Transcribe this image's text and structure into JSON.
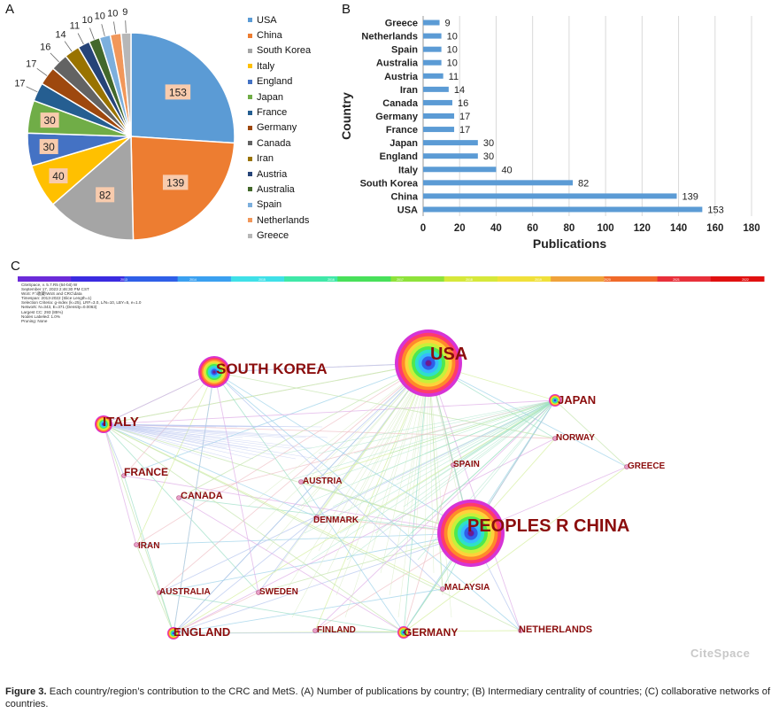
{
  "panels": {
    "a": "A",
    "b": "B",
    "c": "C"
  },
  "chart_data": [
    {
      "type": "pie",
      "labels": [
        "USA",
        "China",
        "South Korea",
        "Italy",
        "England",
        "Japan",
        "France",
        "Germany",
        "Canada",
        "Iran",
        "Austria",
        "Australia",
        "Spain",
        "Netherlands",
        "Greece"
      ],
      "values": [
        153,
        139,
        82,
        40,
        30,
        30,
        17,
        17,
        16,
        14,
        11,
        10,
        10,
        10,
        9
      ],
      "colors": [
        "#5b9bd5",
        "#ed7d31",
        "#a5a5a5",
        "#ffc000",
        "#4472c4",
        "#70ad47",
        "#255e91",
        "#9e480e",
        "#636363",
        "#997300",
        "#264478",
        "#43682b",
        "#7cafdd",
        "#f1975a",
        "#b7b7b7"
      ],
      "legend": "right"
    },
    {
      "type": "bar",
      "orientation": "horizontal",
      "categories": [
        "Greece",
        "Netherlands",
        "Spain",
        "Australia",
        "Austria",
        "Iran",
        "Canada",
        "Germany",
        "France",
        "Japan",
        "England",
        "Italy",
        "South Korea",
        "China",
        "USA"
      ],
      "values": [
        9,
        10,
        10,
        10,
        11,
        14,
        16,
        17,
        17,
        30,
        30,
        40,
        82,
        139,
        153
      ],
      "xlabel": "Publications",
      "ylabel": "Country",
      "xlim": [
        0,
        180
      ],
      "xticks": [
        "0",
        "20",
        "40",
        "60",
        "80",
        "100",
        "120",
        "140",
        "160",
        "180"
      ],
      "color": "#5b9bd5",
      "grid": true
    }
  ],
  "network": {
    "header_lines": [
      "CiteSpace, v. 5.7.R5 (64-bit) W",
      "September 17, 2023 2:46:30 PM CST",
      "WoS: F:\\收藏\\WoS and CRC\\data",
      "Timespan: 2013-2022 (Slice Length=1)",
      "Selection Criteria: g-index (k=25), LRF=3.0, L/N=10, LBY=5, e=1.0",
      "Network: N=343, E=371 (Density=0.0063)",
      "Largest CC: 293 (85%)",
      "Nodes Labeled: 1.0%",
      "Pruning: None"
    ],
    "timeline_years": [
      "2013",
      "2014",
      "2015",
      "2016",
      "2017",
      "2018",
      "2019",
      "2020",
      "2021",
      "2022"
    ],
    "nodes": [
      {
        "label": "USA",
        "size": "xl"
      },
      {
        "label": "PEOPLES R CHINA",
        "size": "xl"
      },
      {
        "label": "SOUTH KOREA",
        "size": "l"
      },
      {
        "label": "ITALY",
        "size": "m"
      },
      {
        "label": "JAPAN",
        "size": "s"
      },
      {
        "label": "ENGLAND",
        "size": "s"
      },
      {
        "label": "GERMANY",
        "size": "s"
      },
      {
        "label": "FRANCE",
        "size": "xs"
      },
      {
        "label": "CANADA",
        "size": "xs"
      },
      {
        "label": "IRAN",
        "size": "xs"
      },
      {
        "label": "AUSTRIA",
        "size": "xs"
      },
      {
        "label": "DENMARK",
        "size": "xs"
      },
      {
        "label": "SPAIN",
        "size": "xs"
      },
      {
        "label": "NORWAY",
        "size": "xs"
      },
      {
        "label": "GREECE",
        "size": "xs"
      },
      {
        "label": "MALAYSIA",
        "size": "xs"
      },
      {
        "label": "AUSTRALIA",
        "size": "xs"
      },
      {
        "label": "SWEDEN",
        "size": "xs"
      },
      {
        "label": "FINLAND",
        "size": "xs"
      },
      {
        "label": "NETHERLANDS",
        "size": "xs"
      }
    ],
    "watermark": "CiteSpace"
  },
  "caption": {
    "lead": "Figure 3.",
    "text": " Each country/region’s contribution to the CRC and MetS. (A) Number of publications by country; (B) Intermediary centrality of countries; (C) collaborative networks of countries."
  }
}
